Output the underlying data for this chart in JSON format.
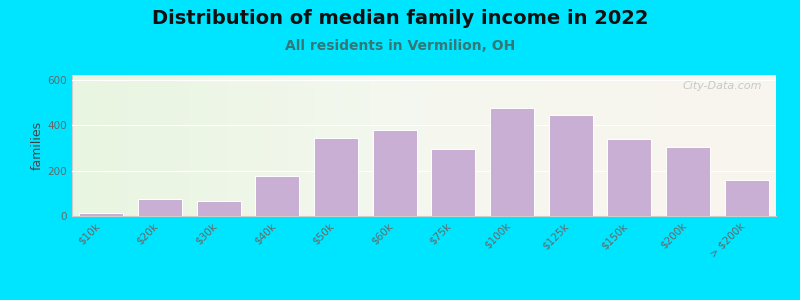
{
  "title": "Distribution of median family income in 2022",
  "subtitle": "All residents in Vermilion, OH",
  "ylabel": "families",
  "categories": [
    "$10k",
    "$20k",
    "$30k",
    "$40k",
    "$50k",
    "$60k",
    "$75k",
    "$100k",
    "$125k",
    "$150k",
    "$200k",
    "> $200k"
  ],
  "values": [
    15,
    75,
    65,
    175,
    345,
    380,
    295,
    475,
    445,
    340,
    305,
    160
  ],
  "bar_color": "#c9afd4",
  "bar_edge_color": "#ffffff",
  "background_outer": "#00e5ff",
  "ylim": [
    0,
    620
  ],
  "yticks": [
    0,
    200,
    400,
    600
  ],
  "title_fontsize": 14,
  "subtitle_fontsize": 10,
  "ylabel_fontsize": 9,
  "watermark": "City-Data.com",
  "tick_color": "#666666",
  "tick_fontsize": 7.5
}
